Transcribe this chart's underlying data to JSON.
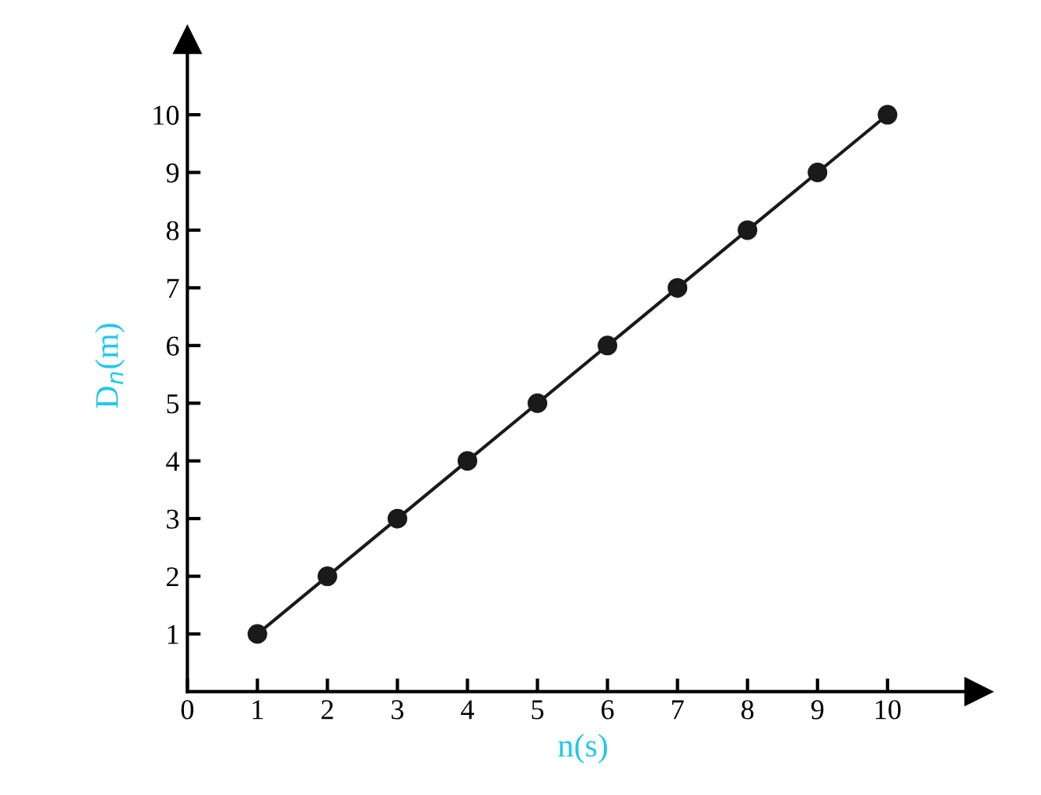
{
  "chart_data": {
    "type": "line",
    "xlabel": "n(s)",
    "ylabel": "D$_{n}$(m)",
    "x": [
      1,
      2,
      3,
      4,
      5,
      6,
      7,
      8,
      9,
      10
    ],
    "series": [
      {
        "color": "#1a1a1a",
        "values": [
          1,
          2,
          3,
          4,
          5,
          6,
          7,
          8,
          9,
          10
        ]
      }
    ],
    "xlim": [
      0,
      11.3
    ],
    "ylim": [
      0,
      11.3
    ],
    "xticks": [
      0,
      1,
      2,
      3,
      4,
      5,
      6,
      7,
      8,
      9,
      10
    ],
    "yticks": [
      1,
      2,
      3,
      4,
      5,
      6,
      7,
      8,
      9,
      10
    ],
    "marker": "circle",
    "line_style": "solid",
    "grid": false,
    "legend": false
  }
}
